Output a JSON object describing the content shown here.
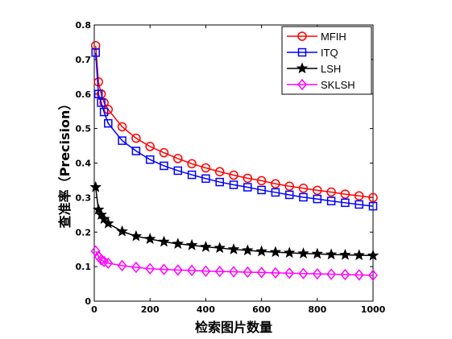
{
  "chart_data": {
    "type": "line",
    "title": "",
    "xlabel": "检索图片数量",
    "ylabel": "查准率（Precision）",
    "xlim": [
      0,
      1000
    ],
    "ylim": [
      0,
      0.8
    ],
    "xticks": [
      0,
      200,
      400,
      600,
      800,
      1000
    ],
    "yticks": [
      0,
      0.1,
      0.2,
      0.3,
      0.4,
      0.5,
      0.6,
      0.7,
      0.8
    ],
    "xtick_labels": [
      "0",
      "200",
      "400",
      "600",
      "800",
      "1000"
    ],
    "ytick_labels": [
      "0",
      "0.1",
      "0.2",
      "0.3",
      "0.4",
      "0.5",
      "0.6",
      "0.7",
      "0.8"
    ],
    "grid": false,
    "legend_position": "top-right",
    "x": [
      5,
      15,
      25,
      35,
      50,
      100,
      150,
      200,
      250,
      300,
      350,
      400,
      450,
      500,
      550,
      600,
      650,
      700,
      750,
      800,
      850,
      900,
      950,
      1000
    ],
    "series": [
      {
        "name": "MFIH",
        "color": "#ff0000",
        "marker": "circle",
        "values": [
          0.74,
          0.635,
          0.6,
          0.575,
          0.555,
          0.505,
          0.472,
          0.448,
          0.43,
          0.413,
          0.398,
          0.386,
          0.375,
          0.365,
          0.356,
          0.349,
          0.34,
          0.333,
          0.327,
          0.321,
          0.316,
          0.31,
          0.305,
          0.3
        ]
      },
      {
        "name": "ITQ",
        "color": "#0000ff",
        "marker": "square",
        "values": [
          0.72,
          0.6,
          0.575,
          0.548,
          0.515,
          0.465,
          0.435,
          0.41,
          0.392,
          0.378,
          0.366,
          0.355,
          0.345,
          0.337,
          0.33,
          0.322,
          0.315,
          0.308,
          0.301,
          0.296,
          0.29,
          0.285,
          0.28,
          0.275
        ]
      },
      {
        "name": "LSH",
        "color": "#000000",
        "marker": "star",
        "values": [
          0.33,
          0.265,
          0.25,
          0.238,
          0.225,
          0.202,
          0.188,
          0.18,
          0.172,
          0.166,
          0.162,
          0.157,
          0.154,
          0.15,
          0.147,
          0.144,
          0.142,
          0.14,
          0.138,
          0.137,
          0.135,
          0.134,
          0.133,
          0.132
        ]
      },
      {
        "name": "SKLSH",
        "color": "#ff00ff",
        "marker": "diamond",
        "values": [
          0.145,
          0.13,
          0.12,
          0.115,
          0.11,
          0.103,
          0.098,
          0.094,
          0.092,
          0.09,
          0.089,
          0.087,
          0.086,
          0.085,
          0.084,
          0.083,
          0.082,
          0.081,
          0.08,
          0.079,
          0.078,
          0.077,
          0.076,
          0.075
        ]
      }
    ]
  }
}
